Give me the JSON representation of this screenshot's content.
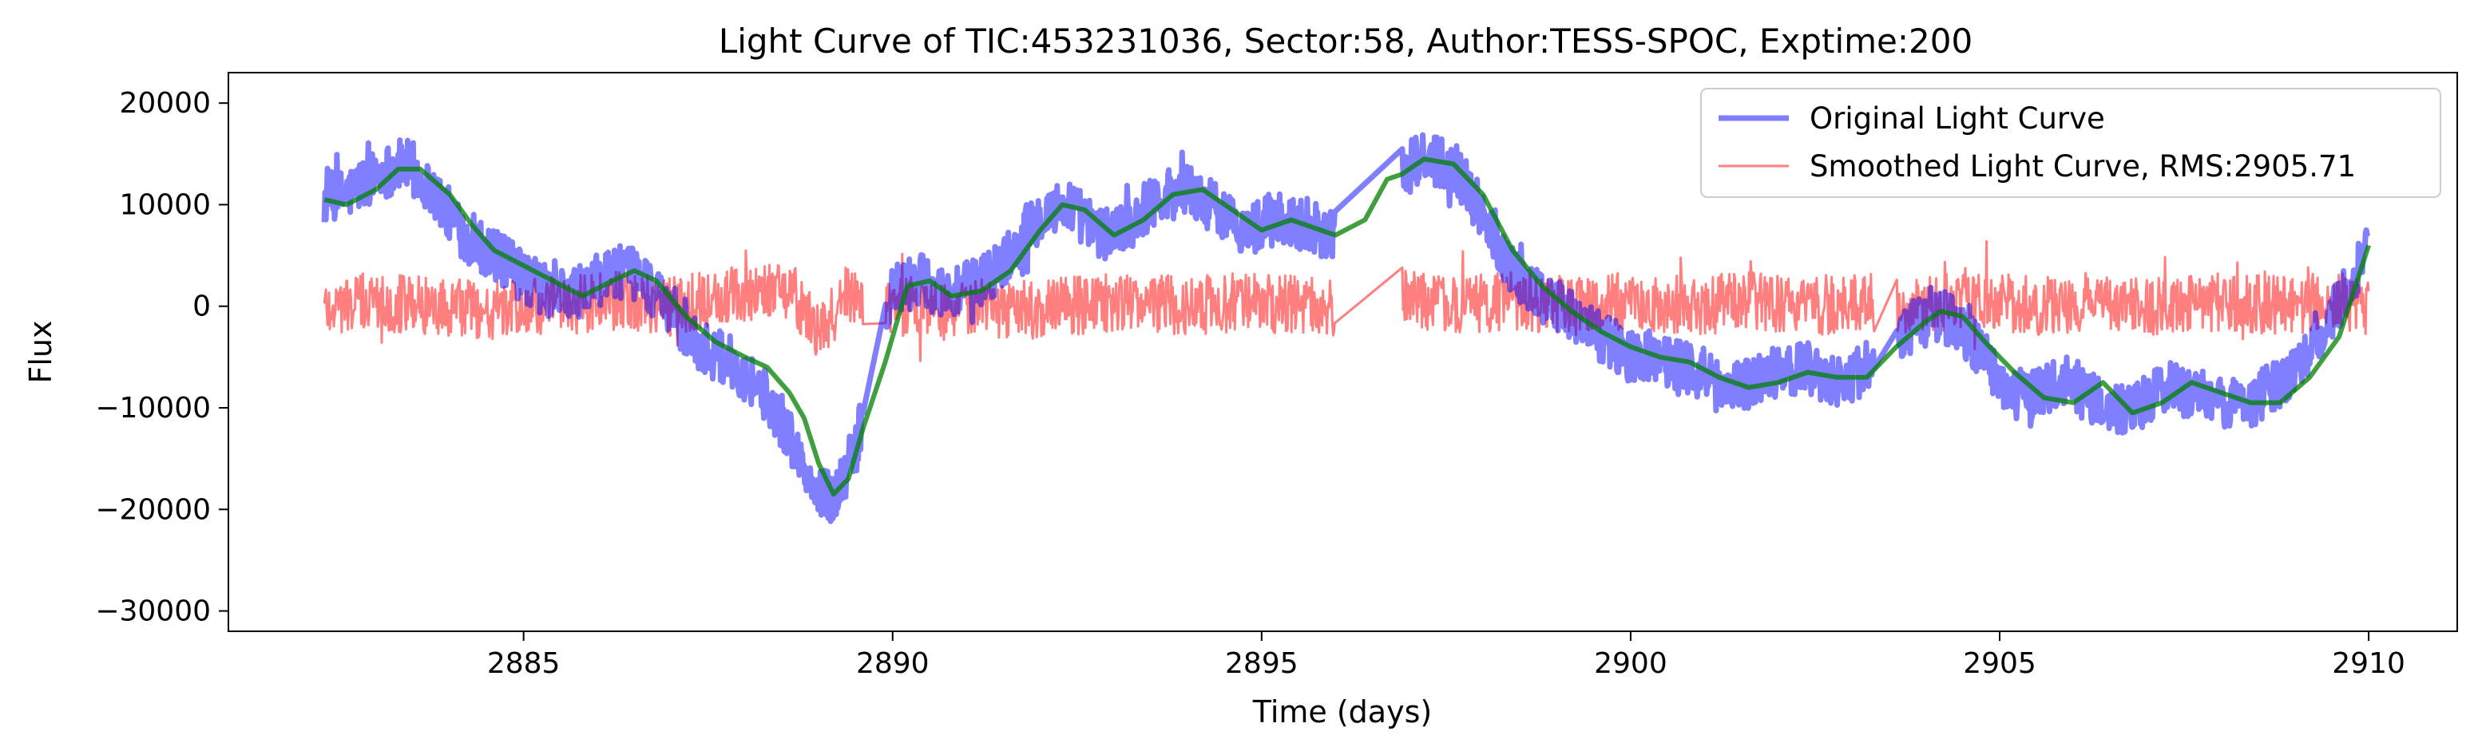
{
  "chart_data": {
    "type": "line",
    "title": "Light Curve of TIC:453231036, Sector:58, Author:TESS-SPOC, Exptime:200",
    "xlabel": "Time (days)",
    "ylabel": "Flux",
    "xlim": [
      2881.0,
      2911.2
    ],
    "ylim": [
      -32000,
      23000
    ],
    "xticks": [
      2885,
      2890,
      2895,
      2900,
      2905,
      2910
    ],
    "xtick_labels": [
      "2885",
      "2890",
      "2895",
      "2900",
      "2905",
      "2910"
    ],
    "yticks": [
      -30000,
      -20000,
      -10000,
      0,
      10000,
      20000
    ],
    "ytick_labels": [
      "−30000",
      "−20000",
      "−10000",
      "0",
      "10000",
      "20000"
    ],
    "grid": false,
    "legend_position": "upper right",
    "gaps": [
      [
        2889.6,
        2889.9
      ],
      [
        2896.0,
        2896.9
      ],
      [
        2903.3,
        2903.6
      ]
    ],
    "series": [
      {
        "name": "Original Light Curve",
        "color": "#0000ff",
        "noise": 2600,
        "x": [
          2882.3,
          2882.6,
          2883.0,
          2883.4,
          2883.8,
          2884.2,
          2884.6,
          2885.0,
          2885.4,
          2885.8,
          2886.2,
          2886.6,
          2887.0,
          2887.4,
          2887.8,
          2888.2,
          2888.6,
          2888.9,
          2889.2,
          2889.5,
          2890.0,
          2890.4,
          2890.8,
          2891.2,
          2891.6,
          2892.0,
          2892.4,
          2892.8,
          2893.2,
          2893.6,
          2894.0,
          2894.4,
          2894.8,
          2895.2,
          2895.6,
          2896.0,
          2896.4,
          2896.8,
          2897.2,
          2897.6,
          2898.0,
          2898.4,
          2898.8,
          2899.2,
          2899.6,
          2900.0,
          2900.4,
          2900.8,
          2901.2,
          2901.6,
          2902.0,
          2902.4,
          2902.8,
          2903.2,
          2903.6,
          2904.0,
          2904.4,
          2904.8,
          2905.2,
          2905.6,
          2906.0,
          2906.4,
          2906.8,
          2907.2,
          2907.6,
          2908.0,
          2908.4,
          2908.8,
          2909.2,
          2909.6,
          2910.0
        ],
        "y": [
          10500,
          11000,
          13000,
          14000,
          11000,
          7000,
          5000,
          3000,
          1000,
          1500,
          3500,
          3000,
          -1000,
          -4000,
          -5500,
          -8000,
          -12500,
          -18000,
          -19000,
          -14000,
          1500,
          2500,
          1000,
          2500,
          5000,
          9000,
          10000,
          7000,
          8000,
          11000,
          11500,
          9500,
          7500,
          8500,
          8000,
          7000,
          9000,
          13000,
          14500,
          14000,
          9000,
          3500,
          1000,
          -1000,
          -3000,
          -5000,
          -5000,
          -6000,
          -8000,
          -7500,
          -6500,
          -6000,
          -7500,
          -6000,
          -4000,
          -500,
          -1500,
          -5000,
          -9000,
          -8000,
          -7500,
          -10000,
          -10500,
          -8000,
          -8500,
          -9500,
          -9500,
          -7500,
          -4000,
          0,
          6000
        ]
      },
      {
        "name": "Smoothed Light Curve, RMS:2905.71",
        "color": "#ff0000",
        "noise": 2905.71,
        "x": [
          2882.3,
          2883.0,
          2883.8,
          2884.6,
          2885.4,
          2886.2,
          2887.0,
          2887.8,
          2888.6,
          2889.0,
          2889.4,
          2890.0,
          2890.8,
          2891.6,
          2892.4,
          2893.2,
          2894.0,
          2894.8,
          2895.6,
          2896.0,
          2896.9,
          2897.6,
          2898.4,
          2899.2,
          2900.0,
          2900.8,
          2901.6,
          2902.4,
          2903.2,
          2904.0,
          2904.8,
          2905.6,
          2906.4,
          2907.2,
          2908.0,
          2908.8,
          2909.6,
          2910.0
        ],
        "y": [
          0,
          500,
          0,
          -500,
          0,
          500,
          0,
          1000,
          2000,
          -3000,
          1500,
          0,
          0,
          -500,
          0,
          500,
          0,
          500,
          0,
          0,
          1000,
          0,
          500,
          0,
          500,
          0,
          500,
          0,
          500,
          0,
          500,
          0,
          500,
          0,
          500,
          0,
          500,
          0
        ]
      },
      {
        "name": "",
        "color": "#008000",
        "noise": 0,
        "x": [
          2882.3,
          2882.6,
          2883.0,
          2883.3,
          2883.6,
          2884.0,
          2884.3,
          2884.6,
          2885.0,
          2885.4,
          2885.8,
          2886.2,
          2886.5,
          2886.8,
          2887.2,
          2887.6,
          2888.0,
          2888.3,
          2888.6,
          2888.8,
          2889.0,
          2889.2,
          2889.4,
          2889.6,
          2889.9,
          2890.2,
          2890.5,
          2890.8,
          2891.2,
          2891.6,
          2892.0,
          2892.3,
          2892.6,
          2893.0,
          2893.4,
          2893.8,
          2894.2,
          2894.6,
          2895.0,
          2895.4,
          2895.8,
          2896.0,
          2896.4,
          2896.7,
          2896.9,
          2897.2,
          2897.6,
          2898.0,
          2898.4,
          2898.8,
          2899.2,
          2899.6,
          2900.0,
          2900.4,
          2900.8,
          2901.2,
          2901.6,
          2902.0,
          2902.4,
          2902.8,
          2903.2,
          2903.6,
          2904.0,
          2904.2,
          2904.5,
          2904.8,
          2905.2,
          2905.6,
          2906.0,
          2906.4,
          2906.8,
          2907.2,
          2907.6,
          2908.0,
          2908.4,
          2908.8,
          2909.2,
          2909.6,
          2910.0
        ],
        "y": [
          10500,
          10000,
          11500,
          13500,
          13500,
          11000,
          8000,
          5500,
          4000,
          2500,
          1000,
          2500,
          3500,
          2500,
          -1000,
          -3500,
          -5000,
          -6000,
          -8500,
          -11000,
          -15500,
          -18500,
          -17000,
          -12000,
          -5500,
          2000,
          2500,
          1000,
          1500,
          3500,
          7500,
          10000,
          9500,
          7000,
          8500,
          11000,
          11500,
          9500,
          7500,
          8500,
          7500,
          7000,
          8500,
          12500,
          13000,
          14500,
          14000,
          11000,
          5500,
          2000,
          -500,
          -2500,
          -4000,
          -5000,
          -5500,
          -7000,
          -8000,
          -7500,
          -6500,
          -7000,
          -7000,
          -4000,
          -1500,
          -500,
          -1000,
          -3500,
          -6500,
          -9000,
          -9500,
          -7500,
          -10500,
          -9500,
          -7500,
          -8500,
          -9500,
          -9500,
          -7000,
          -3000,
          6000
        ]
      }
    ],
    "styles": [
      {
        "stroke_opacity": 0.5,
        "kind": "noisy-thick"
      },
      {
        "stroke_opacity": 0.5,
        "kind": "noisy-thin"
      },
      {
        "stroke_opacity": 0.75,
        "kind": "smooth"
      }
    ]
  }
}
